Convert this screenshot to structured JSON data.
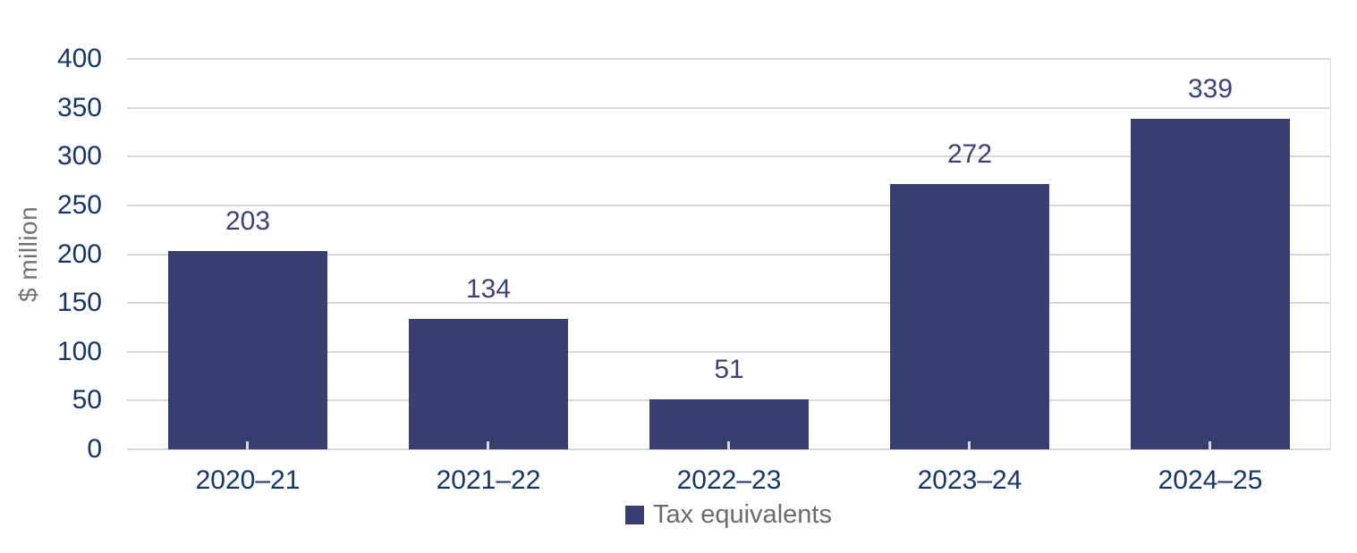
{
  "chart_data": {
    "type": "bar",
    "title": "",
    "xlabel": "",
    "ylabel": "$ million",
    "categories": [
      "2020–21",
      "2021–22",
      "2022–23",
      "2023–24",
      "2024–25"
    ],
    "series": [
      {
        "name": "Tax equivalents",
        "values": [
          203,
          134,
          51,
          272,
          339
        ]
      }
    ],
    "data_labels": [
      "203",
      "134",
      "51",
      "272",
      "339"
    ],
    "ylim": [
      0,
      400
    ],
    "yticks": [
      0,
      50,
      100,
      150,
      200,
      250,
      300,
      350,
      400
    ],
    "grid": "horizontal",
    "legend_position": "bottom-center",
    "colors": {
      "bar": "#383E70",
      "axis_tick_label": "#16356A",
      "data_label": "#3C4278",
      "gridline": "#D9D9D9",
      "axis_line": "#D9D9D9",
      "y_axis_title": "#767171",
      "legend_text": "#6B6B6B",
      "background": "#FFFFFF"
    }
  }
}
